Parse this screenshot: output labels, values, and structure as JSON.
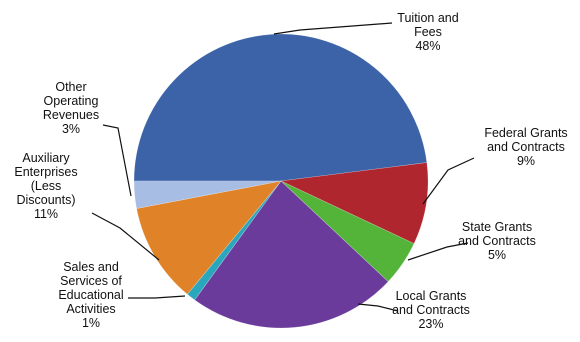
{
  "chart_data": {
    "type": "pie",
    "title": "",
    "slices": [
      {
        "label": [
          "Tuition and",
          "Fees",
          "48%"
        ],
        "value": 48,
        "color": "#3c63a8"
      },
      {
        "label": [
          "Federal Grants",
          "and Contracts",
          "9%"
        ],
        "value": 9,
        "color": "#b0262f"
      },
      {
        "label": [
          "State Grants",
          "and Contracts",
          "5%"
        ],
        "value": 5,
        "color": "#54b43a"
      },
      {
        "label": [
          "Local Grants",
          "and Contracts",
          "23%"
        ],
        "value": 23,
        "color": "#6a3b9a"
      },
      {
        "label": [
          "Sales and",
          "Services of",
          "Educational",
          "Activities",
          "1%"
        ],
        "value": 1,
        "color": "#2aa6bd"
      },
      {
        "label": [
          "Auxiliary",
          "Enterprises",
          "(Less",
          "Discounts)",
          "11%"
        ],
        "value": 11,
        "color": "#e08227"
      },
      {
        "label": [
          "Other",
          "Operating",
          "Revenues",
          "3%"
        ],
        "value": 3,
        "color": "#a7bde4"
      }
    ]
  }
}
